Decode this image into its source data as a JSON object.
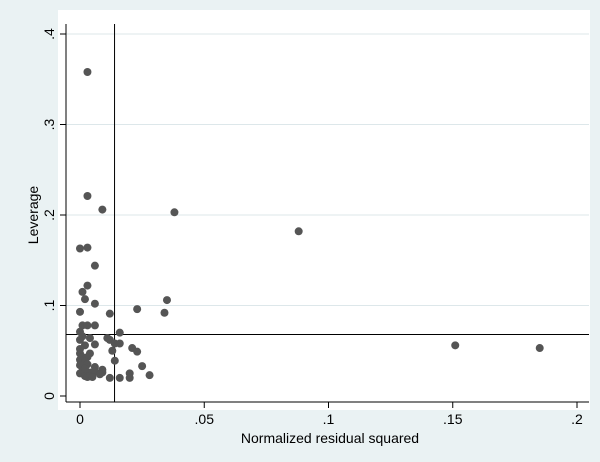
{
  "chart_data": {
    "type": "scatter",
    "title": "",
    "xlabel": "Normalized residual squared",
    "ylabel": "Leverage",
    "xlim": [
      -0.002,
      0.203
    ],
    "ylim": [
      -0.005,
      0.405
    ],
    "grid": "horizontal",
    "legend": "none",
    "x_ticks": [
      {
        "value": 0,
        "label": "0"
      },
      {
        "value": 0.05,
        "label": ".05"
      },
      {
        "value": 0.1,
        "label": ".1"
      },
      {
        "value": 0.15,
        "label": ".15"
      },
      {
        "value": 0.2,
        "label": ".2"
      }
    ],
    "y_ticks": [
      {
        "value": 0,
        "label": "0"
      },
      {
        "value": 0.1,
        "label": ".1"
      },
      {
        "value": 0.2,
        "label": ".2"
      },
      {
        "value": 0.3,
        "label": ".3"
      },
      {
        "value": 0.4,
        "label": ".4"
      }
    ],
    "reference_lines": {
      "x": 0.0139,
      "y": 0.068
    },
    "series": [
      {
        "marker_color": "#555555",
        "points": [
          [
            0.003,
            0.358
          ],
          [
            0.003,
            0.221
          ],
          [
            0.009,
            0.206
          ],
          [
            0.038,
            0.203
          ],
          [
            0.088,
            0.182
          ],
          [
            0.0,
            0.163
          ],
          [
            0.003,
            0.164
          ],
          [
            0.006,
            0.144
          ],
          [
            0.003,
            0.122
          ],
          [
            0.001,
            0.115
          ],
          [
            0.002,
            0.107
          ],
          [
            0.006,
            0.102
          ],
          [
            0.035,
            0.106
          ],
          [
            0.023,
            0.096
          ],
          [
            0.0,
            0.093
          ],
          [
            0.012,
            0.091
          ],
          [
            0.034,
            0.092
          ],
          [
            0.001,
            0.078
          ],
          [
            0.006,
            0.078
          ],
          [
            0.0,
            0.071
          ],
          [
            0.003,
            0.078
          ],
          [
            0.016,
            0.07
          ],
          [
            0.001,
            0.066
          ],
          [
            0.0,
            0.062
          ],
          [
            0.004,
            0.064
          ],
          [
            0.011,
            0.064
          ],
          [
            0.012,
            0.062
          ],
          [
            0.014,
            0.058
          ],
          [
            0.016,
            0.058
          ],
          [
            0.006,
            0.057
          ],
          [
            0.151,
            0.056
          ],
          [
            0.185,
            0.053
          ],
          [
            0.002,
            0.056
          ],
          [
            0.0,
            0.052
          ],
          [
            0.021,
            0.053
          ],
          [
            0.013,
            0.05
          ],
          [
            0.023,
            0.049
          ],
          [
            0.0,
            0.047
          ],
          [
            0.004,
            0.047
          ],
          [
            0.001,
            0.043
          ],
          [
            0.003,
            0.043
          ],
          [
            0.0,
            0.04
          ],
          [
            0.014,
            0.039
          ],
          [
            0.002,
            0.038
          ],
          [
            0.0,
            0.034
          ],
          [
            0.003,
            0.035
          ],
          [
            0.025,
            0.033
          ],
          [
            0.006,
            0.032
          ],
          [
            0.009,
            0.029
          ],
          [
            0.001,
            0.028
          ],
          [
            0.004,
            0.026
          ],
          [
            0.006,
            0.027
          ],
          [
            0.009,
            0.026
          ],
          [
            0.0,
            0.025
          ],
          [
            0.02,
            0.025
          ],
          [
            0.028,
            0.023
          ],
          [
            0.002,
            0.022
          ],
          [
            0.003,
            0.021
          ],
          [
            0.004,
            0.022
          ],
          [
            0.005,
            0.021
          ],
          [
            0.012,
            0.02
          ],
          [
            0.016,
            0.02
          ],
          [
            0.02,
            0.02
          ],
          [
            0.008,
            0.024
          ],
          [
            0.002,
            0.03
          ]
        ]
      }
    ]
  }
}
